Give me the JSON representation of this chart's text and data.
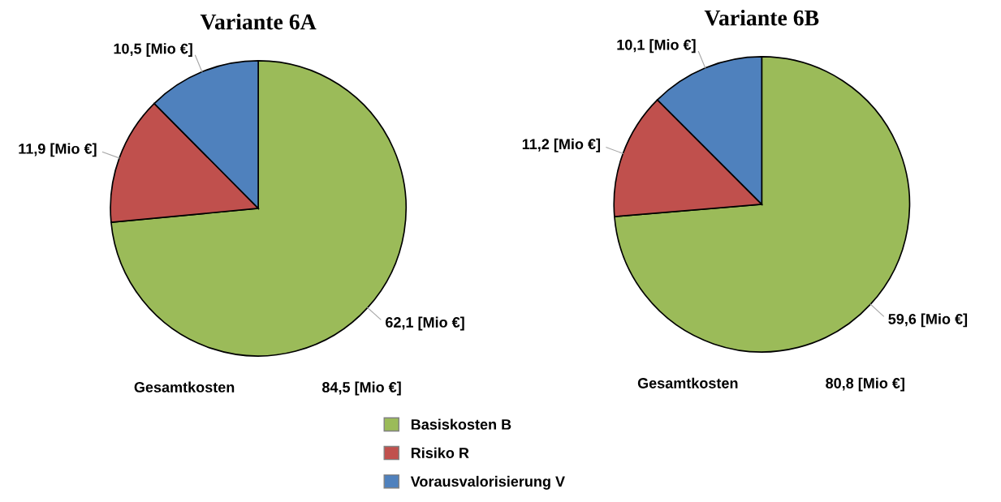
{
  "chart_data": [
    {
      "type": "pie",
      "title": "Variante 6A",
      "categories": [
        "Basiskosten B",
        "Risiko R",
        "Vorausvalorisierung V"
      ],
      "values": [
        62.1,
        11.9,
        10.5
      ],
      "colors": [
        "#9bbb59",
        "#c0504d",
        "#4f81bd"
      ],
      "value_labels": [
        "62,1 [Mio €]",
        "11,9 [Mio €]",
        "10,5 [Mio €]"
      ],
      "annotations": [
        "Gesamtkosten",
        "84,5 [Mio €]"
      ],
      "legend": "bottom"
    },
    {
      "type": "pie",
      "title": "Variante 6B",
      "categories": [
        null,
        null,
        null
      ],
      "values": [
        59.6,
        11.2,
        10.1
      ],
      "colors": [
        "#9bbb59",
        "#c0504d",
        "#4f81bd"
      ],
      "value_labels": [
        "59,6 [Mio €]",
        "11,2 [Mio €]",
        "10,1 [Mio €]"
      ],
      "annotations": [
        "Gesamtkosten",
        "80,8 [Mio €]"
      ]
    }
  ]
}
